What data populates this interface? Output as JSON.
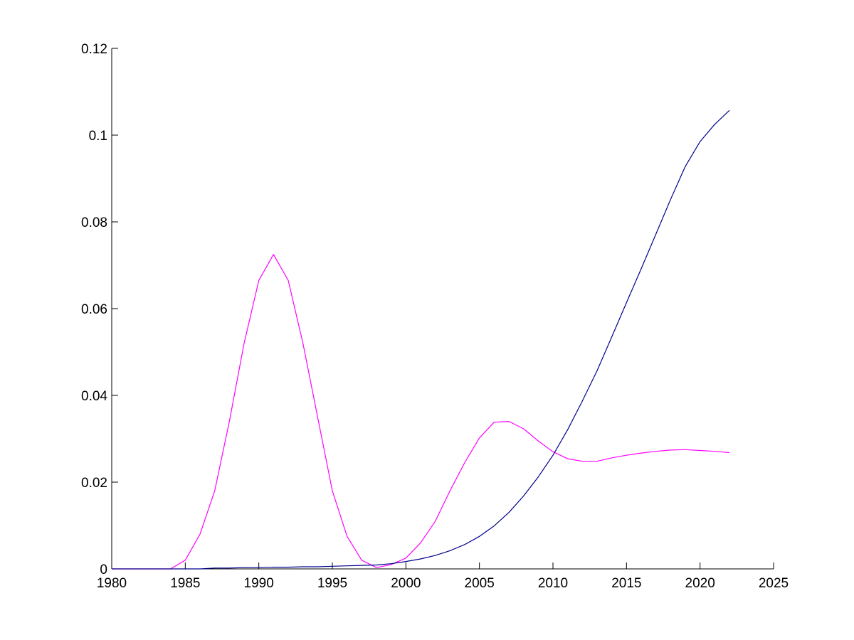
{
  "chart_data": {
    "type": "line",
    "title": "",
    "xlabel": "",
    "ylabel": "",
    "xlim": [
      1980,
      2025
    ],
    "ylim": [
      0,
      0.12
    ],
    "grid": false,
    "legend": "none",
    "x_ticks": [
      1980,
      1985,
      1990,
      1995,
      2000,
      2005,
      2010,
      2015,
      2020,
      2025
    ],
    "x_tick_labels": [
      "1980",
      "1985",
      "1990",
      "1995",
      "2000",
      "2005",
      "2010",
      "2015",
      "2020",
      "2025"
    ],
    "y_ticks": [
      0,
      0.02,
      0.04,
      0.06,
      0.08,
      0.1,
      0.12
    ],
    "y_tick_labels": [
      "0",
      "0.02",
      "0.04",
      "0.06",
      "0.08",
      "0.1",
      "0.12"
    ],
    "x": [
      1980,
      1981,
      1982,
      1983,
      1984,
      1985,
      1986,
      1987,
      1988,
      1989,
      1990,
      1991,
      1992,
      1993,
      1994,
      1995,
      1996,
      1997,
      1998,
      1999,
      2000,
      2001,
      2002,
      2003,
      2004,
      2005,
      2006,
      2007,
      2008,
      2009,
      2010,
      2011,
      2012,
      2013,
      2014,
      2015,
      2016,
      2017,
      2018,
      2019,
      2020,
      2021,
      2022
    ],
    "series": [
      {
        "color": "#ff00ff",
        "values": [
          0,
          0,
          0,
          0,
          0,
          0.002,
          0.008,
          0.018,
          0.034,
          0.052,
          0.0665,
          0.0725,
          0.0665,
          0.052,
          0.035,
          0.018,
          0.0075,
          0.002,
          0.0003,
          0.001,
          0.0025,
          0.006,
          0.011,
          0.018,
          0.0245,
          0.0302,
          0.0338,
          0.034,
          0.0323,
          0.0295,
          0.027,
          0.0254,
          0.0248,
          0.0248,
          0.0256,
          0.0262,
          0.0267,
          0.0271,
          0.0274,
          0.0275,
          0.0273,
          0.0271,
          0.0268
        ]
      },
      {
        "color": "#00008b",
        "values": [
          0,
          0,
          0,
          0,
          0,
          0,
          0,
          0.0002,
          0.0002,
          0.0003,
          0.0003,
          0.0004,
          0.0004,
          0.0005,
          0.0005,
          0.0006,
          0.0007,
          0.0008,
          0.0009,
          0.0012,
          0.0017,
          0.0023,
          0.0031,
          0.0042,
          0.0056,
          0.0075,
          0.0099,
          0.013,
          0.0168,
          0.0212,
          0.0262,
          0.0321,
          0.0387,
          0.0457,
          0.0535,
          0.0614,
          0.0692,
          0.0772,
          0.0852,
          0.0928,
          0.0985,
          0.1025,
          0.1057
        ]
      }
    ]
  }
}
